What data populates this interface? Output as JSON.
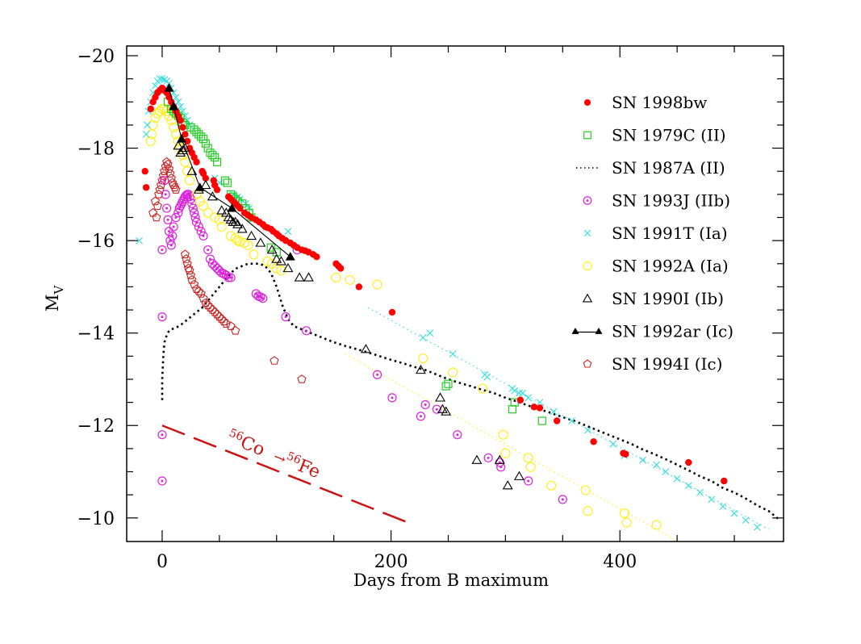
{
  "chart_data": {
    "type": "scatter",
    "title": "",
    "xlabel": "Days from B maximum",
    "ylabel": "M_V",
    "ylabel_main": "M",
    "ylabel_sub": "V",
    "xlim": [
      -31,
      543
    ],
    "ylim": [
      -9.49,
      -20.21
    ],
    "y_inverted": true,
    "grid": false,
    "legend_position": "top-right",
    "x_ticks_major": [
      0,
      200,
      400
    ],
    "x_tick_labels": [
      "0",
      "200",
      "400"
    ],
    "x_ticks_minor": [
      50,
      100,
      150,
      250,
      300,
      350,
      450,
      500
    ],
    "y_ticks_major": [
      -20,
      -18,
      -16,
      -14,
      -12,
      -10
    ],
    "y_tick_labels": [
      "−20",
      "−18",
      "−16",
      "−14",
      "−12",
      "−10"
    ],
    "y_ticks_minor": [
      -19.5,
      -19,
      -18.5,
      -17.5,
      -17,
      -16.5,
      -15.5,
      -15,
      -14.5,
      -13.5,
      -13,
      -12.5,
      -11.5,
      -11,
      -10.5
    ],
    "annotation": {
      "label_iso1": "56",
      "label_el1": "Co",
      "arrow": "→",
      "label_iso2": "56",
      "label_el2": "Fe",
      "color": "#cc1111",
      "line_start": [
        0,
        -12.0
      ],
      "line_end": [
        220,
        -9.85
      ]
    },
    "series": [
      {
        "name": "SN 1998bw",
        "marker": "filled-circle",
        "color": "#ff0000",
        "x": [
          -15,
          -14,
          -10,
          -8,
          -6,
          -4,
          -2,
          0,
          2,
          4,
          6,
          8,
          10,
          12,
          14,
          16,
          18,
          20,
          22,
          24,
          26,
          28,
          30,
          35,
          36,
          38,
          45,
          46,
          48,
          58,
          60,
          62,
          64,
          66,
          68,
          72,
          75,
          78,
          82,
          85,
          88,
          90,
          92,
          95,
          97,
          100,
          102,
          105,
          108,
          112,
          115,
          118,
          122,
          125,
          128,
          132,
          135,
          152,
          154,
          156,
          172,
          201,
          313,
          325,
          330,
          345,
          377,
          403,
          405,
          460,
          491
        ],
        "y": [
          -17.5,
          -17.15,
          -18.85,
          -19.0,
          -19.1,
          -19.2,
          -19.25,
          -19.3,
          -19.25,
          -19.2,
          -19.1,
          -19.0,
          -18.9,
          -18.8,
          -18.7,
          -18.6,
          -18.45,
          -18.3,
          -18.15,
          -18.0,
          -17.9,
          -17.8,
          -17.7,
          -17.5,
          -17.45,
          -17.35,
          -17.3,
          -17.2,
          -17.1,
          -16.95,
          -16.9,
          -16.85,
          -16.8,
          -16.75,
          -16.7,
          -16.6,
          -16.55,
          -16.5,
          -16.45,
          -16.4,
          -16.35,
          -16.3,
          -16.28,
          -16.25,
          -16.2,
          -16.15,
          -16.1,
          -16.05,
          -16.0,
          -15.95,
          -15.9,
          -15.85,
          -15.8,
          -15.78,
          -15.75,
          -15.7,
          -15.65,
          -15.5,
          -15.45,
          -15.4,
          -15.0,
          -14.45,
          -12.55,
          -12.4,
          -12.38,
          -12.1,
          -11.65,
          -11.4,
          -11.38,
          -11.2,
          -10.8
        ]
      },
      {
        "name": "SN 1979C (II)",
        "marker": "open-square",
        "color": "#22cc22",
        "x": [
          5,
          8,
          10,
          12,
          14,
          16,
          18,
          20,
          25,
          28,
          30,
          32,
          34,
          36,
          38,
          40,
          42,
          44,
          46,
          48,
          55,
          57,
          60,
          62,
          64,
          66,
          70,
          73,
          76,
          78,
          95,
          100,
          248,
          250,
          306,
          308,
          332
        ],
        "y": [
          -19.0,
          -18.85,
          -18.8,
          -18.75,
          -18.7,
          -18.65,
          -18.55,
          -18.5,
          -18.45,
          -18.4,
          -18.35,
          -18.3,
          -18.25,
          -18.2,
          -18.1,
          -18.0,
          -17.9,
          -17.85,
          -17.8,
          -17.7,
          -17.3,
          -17.25,
          -17.0,
          -16.95,
          -16.9,
          -16.85,
          -16.8,
          -16.7,
          -16.6,
          -16.5,
          -15.85,
          -15.75,
          -12.85,
          -12.9,
          -12.35,
          -12.5,
          -12.1
        ]
      },
      {
        "name": "SN 1987A (II)",
        "marker": "dotted-line",
        "color": "#000000",
        "x": [
          0,
          0,
          1,
          2,
          4,
          6,
          10,
          15,
          20,
          25,
          30,
          35,
          40,
          45,
          50,
          55,
          60,
          65,
          70,
          75,
          80,
          85,
          90,
          95,
          100,
          105,
          110,
          115,
          120,
          125,
          130,
          140,
          150,
          160,
          170,
          180,
          190,
          200,
          210,
          220,
          230,
          240,
          250,
          260,
          270,
          280,
          290,
          300,
          310,
          320,
          330,
          340,
          350,
          360,
          370,
          380,
          390,
          400,
          410,
          420,
          430,
          440,
          450,
          460,
          470,
          480,
          490,
          500,
          510,
          520,
          530,
          540
        ],
        "y": [
          -12.55,
          -13.0,
          -13.5,
          -13.8,
          -13.95,
          -14.05,
          -14.1,
          -14.15,
          -14.25,
          -14.35,
          -14.45,
          -14.55,
          -14.7,
          -14.85,
          -15.0,
          -15.15,
          -15.3,
          -15.4,
          -15.45,
          -15.5,
          -15.5,
          -15.5,
          -15.45,
          -15.3,
          -15.0,
          -14.6,
          -14.3,
          -14.15,
          -14.1,
          -14.05,
          -14.0,
          -13.9,
          -13.8,
          -13.72,
          -13.65,
          -13.58,
          -13.5,
          -13.42,
          -13.35,
          -13.27,
          -13.2,
          -13.1,
          -13.0,
          -12.92,
          -12.85,
          -12.77,
          -12.7,
          -12.6,
          -12.52,
          -12.43,
          -12.35,
          -12.27,
          -12.18,
          -12.1,
          -12.0,
          -11.9,
          -11.8,
          -11.7,
          -11.6,
          -11.48,
          -11.38,
          -11.27,
          -11.15,
          -11.03,
          -10.9,
          -10.8,
          -10.65,
          -10.55,
          -10.42,
          -10.27,
          -10.15,
          -9.95
        ]
      },
      {
        "name": "SN 1993J (IIb)",
        "marker": "circle-dot",
        "color": "#dd22dd",
        "x": [
          0,
          0,
          0,
          0,
          2,
          3,
          4,
          5,
          6,
          7,
          8,
          9,
          10,
          12,
          14,
          15,
          16,
          17,
          18,
          19,
          20,
          21,
          22,
          23,
          24,
          25,
          26,
          27,
          28,
          29,
          30,
          32,
          34,
          36,
          40,
          42,
          44,
          46,
          48,
          50,
          52,
          54,
          56,
          58,
          60,
          82,
          84,
          86,
          88,
          108,
          118,
          126,
          188,
          201,
          226,
          230,
          240,
          258,
          285,
          295,
          296,
          320,
          350
        ],
        "y": [
          -15.8,
          -14.35,
          -11.8,
          -10.8,
          -17.3,
          -17.0,
          -16.7,
          -16.45,
          -16.2,
          -16.0,
          -15.9,
          -16.1,
          -16.3,
          -16.5,
          -16.6,
          -16.7,
          -16.75,
          -16.8,
          -16.85,
          -16.9,
          -16.95,
          -16.98,
          -17.0,
          -17.0,
          -16.95,
          -16.9,
          -16.8,
          -16.7,
          -16.6,
          -16.5,
          -16.4,
          -16.3,
          -16.2,
          -16.1,
          -15.8,
          -15.6,
          -15.5,
          -15.45,
          -15.4,
          -15.35,
          -15.3,
          -15.28,
          -15.25,
          -15.2,
          -15.2,
          -14.85,
          -14.8,
          -14.78,
          -14.75,
          -14.35,
          -15.8,
          -14.05,
          -13.1,
          -12.6,
          -12.2,
          -12.45,
          -12.35,
          -11.8,
          -11.3,
          -11.2,
          -11.1,
          -10.8,
          -10.4
        ]
      },
      {
        "name": "SN 1991T (Ia)",
        "marker": "x-cross",
        "color": "#33dddd",
        "x": [
          -20,
          -14,
          -13,
          -12,
          -10,
          -8,
          -6,
          -4,
          -2,
          0,
          2,
          4,
          6,
          8,
          10,
          12,
          14,
          16,
          18,
          20,
          22,
          24,
          46,
          50,
          62,
          66,
          68,
          73,
          76,
          110,
          228,
          234,
          254,
          282,
          284,
          306,
          308,
          312,
          315,
          320,
          330,
          342,
          358,
          372,
          394,
          404,
          420,
          432,
          440,
          450,
          460,
          470,
          480,
          490,
          500,
          510,
          520
        ],
        "y": [
          -16.0,
          -18.3,
          -18.5,
          -18.8,
          -19.0,
          -19.2,
          -19.35,
          -19.45,
          -19.5,
          -19.5,
          -19.48,
          -19.45,
          -19.4,
          -19.3,
          -19.2,
          -19.1,
          -19.0,
          -18.9,
          -18.8,
          -18.7,
          -18.6,
          -18.5,
          -17.35,
          -17.25,
          -17.0,
          -16.95,
          -16.9,
          -16.8,
          -16.7,
          -16.2,
          -13.9,
          -14.0,
          -13.55,
          -13.1,
          -13.05,
          -12.8,
          -12.75,
          -12.7,
          -12.7,
          -12.6,
          -12.5,
          -12.3,
          -12.1,
          -11.9,
          -11.6,
          -11.35,
          -11.25,
          -11.15,
          -11.0,
          -10.85,
          -10.7,
          -10.55,
          -10.4,
          -10.25,
          -10.1,
          -9.95,
          -9.8
        ]
      },
      {
        "name": "SN 1991T (Ia) fit",
        "marker": "dotted-line",
        "color": "#33dddd",
        "x": [
          180,
          530
        ],
        "y": [
          -14.55,
          -9.75
        ]
      },
      {
        "name": "SN 1992A (Ia)",
        "marker": "open-circle",
        "color": "#ffee22",
        "x": [
          -10,
          -9,
          -8,
          -6,
          -4,
          -2,
          0,
          2,
          4,
          6,
          8,
          10,
          12,
          14,
          16,
          18,
          20,
          22,
          24,
          30,
          33,
          36,
          40,
          46,
          50,
          52,
          60,
          64,
          66,
          68,
          72,
          75,
          80,
          92,
          96,
          100,
          104,
          152,
          164,
          188,
          228,
          254,
          280,
          298,
          300,
          320,
          322,
          340,
          370,
          372,
          404,
          406,
          432
        ],
        "y": [
          -18.15,
          -18.3,
          -18.5,
          -18.65,
          -18.75,
          -18.8,
          -18.85,
          -18.85,
          -18.8,
          -18.7,
          -18.6,
          -18.45,
          -18.3,
          -18.15,
          -18.0,
          -17.85,
          -17.7,
          -17.5,
          -17.3,
          -17.0,
          -16.85,
          -16.75,
          -16.6,
          -16.5,
          -16.45,
          -16.3,
          -16.1,
          -16.05,
          -16.0,
          -15.98,
          -15.95,
          -15.9,
          -15.7,
          -15.55,
          -15.5,
          -15.4,
          -15.35,
          -15.2,
          -15.15,
          -15.05,
          -13.45,
          -13.15,
          -12.8,
          -11.8,
          -11.4,
          -11.3,
          -11.1,
          -10.7,
          -10.6,
          -10.15,
          -10.1,
          -9.9,
          -9.85
        ]
      },
      {
        "name": "SN 1992A (Ia) fit",
        "marker": "dotted-line",
        "color": "#ffee22",
        "x": [
          160,
          450
        ],
        "y": [
          -13.55,
          -9.5
        ]
      },
      {
        "name": "SN 1990I (Ib)",
        "marker": "open-triangle",
        "color": "#000000",
        "x": [
          14,
          16,
          18,
          20,
          26,
          32,
          38,
          44,
          52,
          56,
          58,
          60,
          62,
          64,
          66,
          70,
          78,
          86,
          96,
          100,
          104,
          110,
          120,
          128,
          178,
          226,
          243,
          245,
          248,
          275,
          295,
          302,
          312
        ],
        "y": [
          -18.05,
          -17.9,
          -17.95,
          -18.0,
          -17.5,
          -17.1,
          -17.2,
          -16.95,
          -16.65,
          -16.6,
          -16.5,
          -16.45,
          -16.4,
          -16.4,
          -16.35,
          -16.25,
          -16.1,
          -15.95,
          -15.8,
          -15.6,
          -15.55,
          -15.4,
          -15.2,
          -15.2,
          -13.65,
          -13.2,
          -12.6,
          -12.35,
          -12.3,
          -11.25,
          -11.25,
          -10.7,
          -10.9
        ]
      },
      {
        "name": "SN 1992ar (Ic)",
        "marker": "filled-triangle-line",
        "color": "#000000",
        "x": [
          6,
          10,
          17,
          33,
          61,
          112
        ],
        "y": [
          -19.3,
          -18.9,
          -18.2,
          -17.15,
          -16.7,
          -15.65
        ]
      },
      {
        "name": "SN 1994I (Ic)",
        "marker": "open-pentagon",
        "color": "#cc2222",
        "x": [
          -8,
          -6,
          -5,
          -4,
          -3,
          -2,
          -1,
          0,
          1,
          2,
          3,
          4,
          5,
          6,
          7,
          8,
          9,
          10,
          11,
          12,
          20,
          21,
          22,
          23,
          24,
          25,
          26,
          28,
          30,
          32,
          34,
          36,
          38,
          40,
          42,
          44,
          46,
          48,
          50,
          52,
          54,
          56,
          60,
          64,
          98,
          122
        ],
        "y": [
          -16.6,
          -16.85,
          -16.5,
          -16.75,
          -17.0,
          -17.1,
          -17.2,
          -17.3,
          -17.4,
          -17.5,
          -17.6,
          -17.7,
          -17.65,
          -17.55,
          -17.45,
          -17.35,
          -17.25,
          -17.2,
          -17.15,
          -17.1,
          -15.7,
          -15.6,
          -15.5,
          -15.4,
          -15.35,
          -15.25,
          -15.15,
          -15.05,
          -14.95,
          -14.9,
          -14.85,
          -14.75,
          -14.65,
          -14.6,
          -14.55,
          -14.5,
          -14.45,
          -14.4,
          -14.35,
          -14.3,
          -14.25,
          -14.2,
          -14.15,
          -14.05,
          -13.4,
          -13.0
        ]
      }
    ],
    "legend": [
      {
        "label": "SN 1998bw",
        "marker": "filled-circle",
        "color": "#ff0000"
      },
      {
        "label": "SN 1979C (II)",
        "marker": "open-square",
        "color": "#22cc22"
      },
      {
        "label": "SN 1987A (II)",
        "marker": "dotted-line",
        "color": "#000000"
      },
      {
        "label": "SN 1993J (IIb)",
        "marker": "circle-dot",
        "color": "#dd22dd"
      },
      {
        "label": "SN 1991T (Ia)",
        "marker": "x-cross",
        "color": "#33dddd"
      },
      {
        "label": "SN 1992A (Ia)",
        "marker": "open-circle",
        "color": "#ffee22"
      },
      {
        "label": "SN 1990I (Ib)",
        "marker": "open-triangle",
        "color": "#000000"
      },
      {
        "label": "SN 1992ar (Ic)",
        "marker": "filled-triangle-line",
        "color": "#000000"
      },
      {
        "label": "SN 1994I (Ic)",
        "marker": "open-pentagon",
        "color": "#cc2222"
      }
    ]
  }
}
